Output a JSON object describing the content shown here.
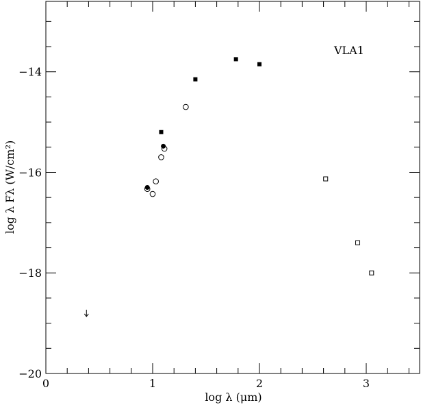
{
  "chart_data": {
    "type": "scatter",
    "title": "",
    "xlabel": "log λ (μm)",
    "ylabel": "log λ Fλ (W/cm²)",
    "xlim": [
      0,
      3.5
    ],
    "ylim": [
      -20,
      -12.6
    ],
    "x_major_ticks": [
      0,
      1,
      2,
      3
    ],
    "x_minor_ticks": [
      0.2,
      0.4,
      0.6,
      0.8,
      1.2,
      1.4,
      1.6,
      1.8,
      2.2,
      2.4,
      2.6,
      2.8,
      3.2,
      3.4
    ],
    "y_major_ticks": [
      -20,
      -18,
      -16,
      -14
    ],
    "y_minor_ticks": [
      -19.5,
      -19,
      -18.5,
      -17.5,
      -17,
      -16.5,
      -15.5,
      -15,
      -14.5,
      -13.5,
      -13
    ],
    "x_tick_labels": [
      "0",
      "1",
      "2",
      "3"
    ],
    "y_tick_labels": [
      "−20",
      "−18",
      "−16",
      "−14"
    ],
    "annotation": "VLA1",
    "grid": false,
    "series": [
      {
        "marker": "filled-square",
        "points": [
          [
            1.08,
            -15.2
          ],
          [
            1.4,
            -14.15
          ],
          [
            1.78,
            -13.75
          ],
          [
            2.0,
            -13.85
          ]
        ]
      },
      {
        "marker": "filled-circle",
        "points": [
          [
            0.95,
            -16.3
          ],
          [
            1.1,
            -15.48
          ]
        ]
      },
      {
        "marker": "open-circle",
        "points": [
          [
            0.95,
            -16.33
          ],
          [
            1.0,
            -16.43
          ],
          [
            1.03,
            -16.18
          ],
          [
            1.08,
            -15.7
          ],
          [
            1.11,
            -15.53
          ],
          [
            1.31,
            -14.7
          ]
        ]
      },
      {
        "marker": "open-square",
        "points": [
          [
            2.62,
            -16.13
          ],
          [
            2.92,
            -17.4
          ],
          [
            3.05,
            -18.0
          ]
        ]
      },
      {
        "marker": "upper-limit-arrow",
        "points": [
          [
            0.38,
            -18.8
          ]
        ]
      }
    ]
  }
}
